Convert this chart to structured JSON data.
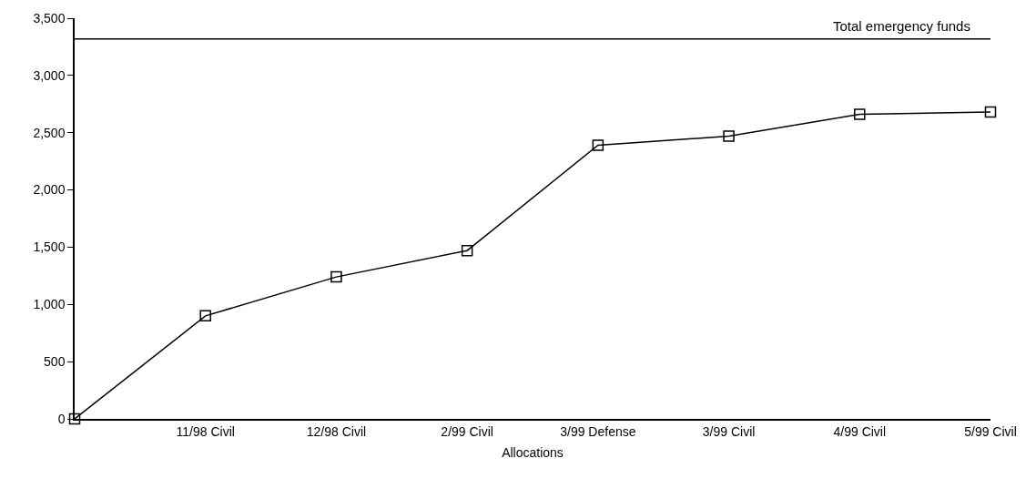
{
  "chart_data": {
    "type": "line",
    "xlabel": "Allocations",
    "categories": [
      null,
      "11/98 Civil",
      "12/98 Civil",
      "2/99 Civil",
      "3/99 Defense",
      "3/99 Civil",
      "4/99 Civil",
      "5/99 Civil"
    ],
    "series": [
      {
        "color": "#000000",
        "values": [
          0,
          900,
          1240,
          1470,
          2390,
          2470,
          2660,
          2680
        ]
      }
    ],
    "ylim": [
      0,
      3500
    ],
    "yticks": [
      {
        "value": 0,
        "label": "0"
      },
      {
        "value": 500,
        "label": "500"
      },
      {
        "value": 1000,
        "label": "1,000"
      },
      {
        "value": 1500,
        "label": "1,500"
      },
      {
        "value": 2000,
        "label": "2,000"
      },
      {
        "value": 2500,
        "label": "2,500"
      },
      {
        "value": 3000,
        "label": "3,000"
      },
      {
        "value": 3500,
        "label": "3,500"
      }
    ],
    "ref_lines": [
      {
        "axis": "y",
        "value": 3320,
        "label": "Total emergency funds",
        "color": "#000000"
      }
    ],
    "marker": "square",
    "line_style": "solid"
  }
}
